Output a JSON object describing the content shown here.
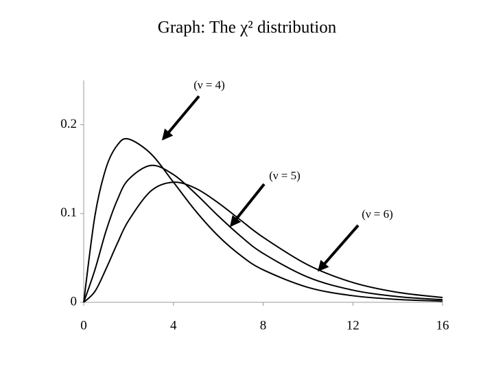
{
  "chart_data": {
    "type": "line",
    "title": "Graph: The χ² distribution",
    "x": [
      0,
      0.5,
      1,
      1.5,
      2,
      3,
      4,
      5,
      6,
      7,
      8,
      10,
      12,
      14,
      16
    ],
    "series": [
      {
        "name": "(ν = 4)",
        "color": "#000000",
        "values": [
          0,
          0.0974,
          0.1516,
          0.1771,
          0.1839,
          0.1673,
          0.1353,
          0.1026,
          0.0747,
          0.0528,
          0.0366,
          0.0168,
          0.0074,
          0.0032,
          0.0013
        ]
      },
      {
        "name": "(ν = 5)",
        "color": "#000000",
        "values": [
          0,
          0.0366,
          0.0807,
          0.1154,
          0.1384,
          0.1542,
          0.1439,
          0.1221,
          0.0973,
          0.0744,
          0.0551,
          0.0283,
          0.0137,
          0.0064,
          0.0029
        ]
      },
      {
        "name": "(ν = 6)",
        "color": "#000000",
        "values": [
          0,
          0.0122,
          0.0379,
          0.0664,
          0.092,
          0.1255,
          0.1353,
          0.1283,
          0.112,
          0.0925,
          0.0733,
          0.0421,
          0.0223,
          0.0112,
          0.0054
        ]
      }
    ],
    "xlim": [
      0,
      16
    ],
    "xticks": [
      0,
      4,
      8,
      12,
      16
    ],
    "ylim": [
      0,
      0.25
    ],
    "yticks": [
      0,
      0.1,
      0.2
    ],
    "grid": false
  }
}
